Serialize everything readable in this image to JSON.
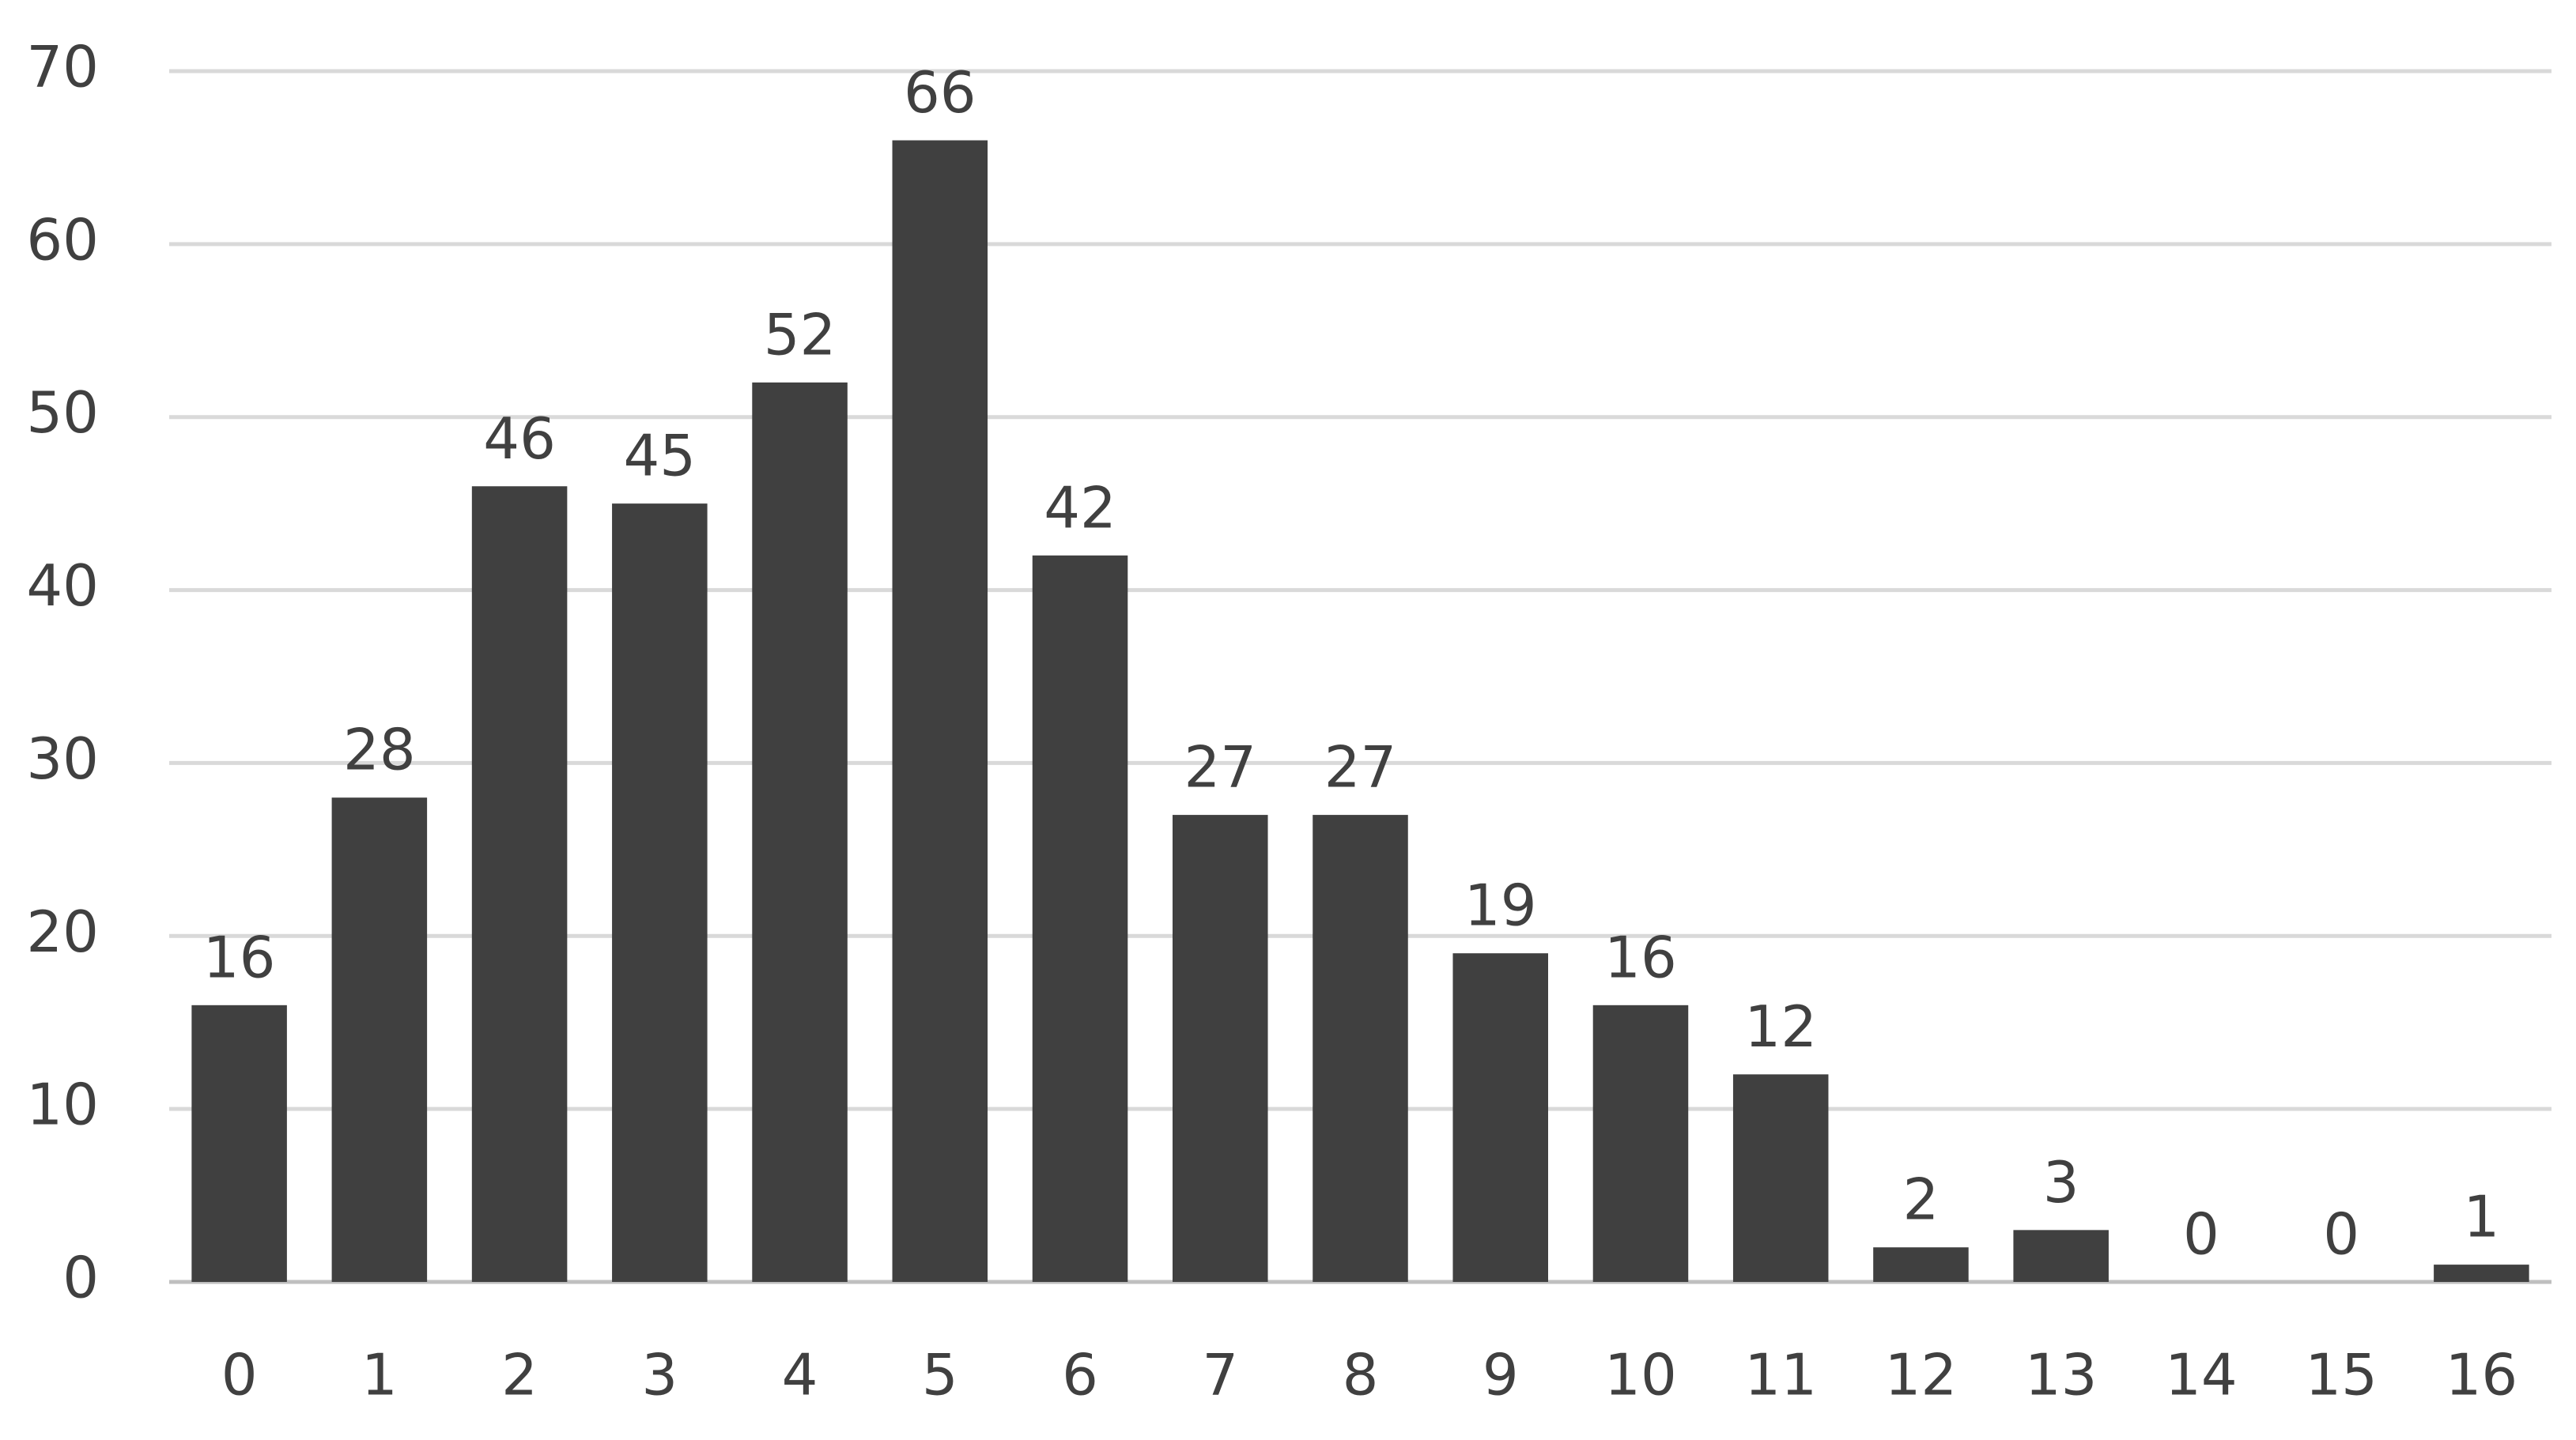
{
  "chart_data": {
    "type": "bar",
    "categories": [
      "0",
      "1",
      "2",
      "3",
      "4",
      "5",
      "6",
      "7",
      "8",
      "9",
      "10",
      "11",
      "12",
      "13",
      "14",
      "15",
      "16"
    ],
    "values": [
      16,
      28,
      46,
      45,
      52,
      66,
      42,
      27,
      27,
      19,
      16,
      12,
      2,
      3,
      0,
      0,
      1
    ],
    "color": "#404040",
    "ylim": [
      0,
      70
    ],
    "yticks": [
      0,
      10,
      20,
      30,
      40,
      50,
      60,
      70
    ],
    "grid": true
  }
}
